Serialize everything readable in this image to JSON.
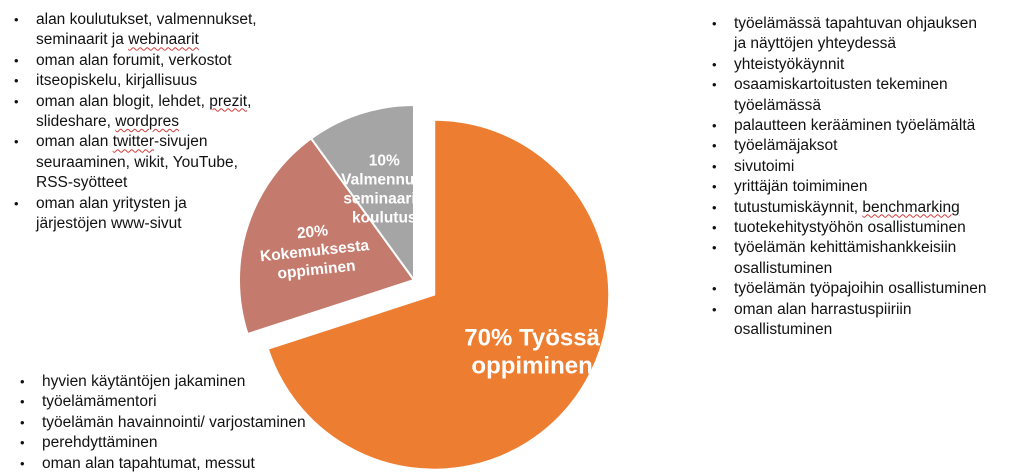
{
  "chart_data": {
    "type": "pie",
    "title": "",
    "slices": [
      {
        "name": "Työssä oppiminen",
        "value": 70,
        "label_lines": [
          "70% Työssä",
          "oppiminen"
        ],
        "color": "#ed7d31",
        "exploded": true
      },
      {
        "name": "Kokemuksesta oppiminen",
        "value": 20,
        "label_lines": [
          "20%",
          "Kokemuksesta",
          "oppiminen"
        ],
        "color": "#c47a6c",
        "exploded": false
      },
      {
        "name": "Valmennus, seminaarit, koulutus",
        "value": 10,
        "label_lines": [
          "10%",
          "Valmennus,",
          "seminaarit,",
          "koulutus"
        ],
        "color": "#a5a5a5",
        "exploded": false
      }
    ]
  },
  "lists": {
    "left": [
      {
        "lines": [
          "alan koulutukset, valmennukset,",
          "seminaarit ja webinaarit"
        ]
      },
      {
        "lines": [
          "oman alan forumit, verkostot"
        ]
      },
      {
        "lines": [
          "itseopiskelu, kirjallisuus"
        ]
      },
      {
        "lines": [
          "oman alan blogit, lehdet, prezit,",
          "slideshare, wordpres"
        ]
      },
      {
        "lines": [
          "oman alan twitter-sivujen",
          "seuraaminen, wikit, YouTube,",
          "RSS-syötteet"
        ]
      },
      {
        "lines": [
          "oman alan yritysten ja",
          "järjestöjen www-sivut"
        ]
      }
    ],
    "right": [
      {
        "lines": [
          "työelämässä tapahtuvan ohjauksen",
          "ja näyttöjen yhteydessä"
        ]
      },
      {
        "lines": [
          "yhteistyökäynnit"
        ]
      },
      {
        "lines": [
          "osaamiskartoitusten tekeminen",
          "työelämässä"
        ]
      },
      {
        "lines": [
          "palautteen kerääminen työelämältä"
        ]
      },
      {
        "lines": [
          "työelämäjaksot"
        ]
      },
      {
        "lines": [
          "sivutoimi"
        ]
      },
      {
        "lines": [
          "yrittäjän toimiminen"
        ]
      },
      {
        "lines": [
          "tutustumiskäynnit, benchmarking"
        ]
      },
      {
        "lines": [
          "tuotekehitystyöhön osallistuminen"
        ]
      },
      {
        "lines": [
          "työelämän kehittämishankkeisiin",
          "osallistuminen"
        ]
      },
      {
        "lines": [
          "työelämän työpajoihin osallistuminen"
        ]
      },
      {
        "lines": [
          "oman alan harrastuspiiriin",
          "osallistuminen"
        ]
      }
    ],
    "bottom": [
      {
        "lines": [
          "hyvien käytäntöjen jakaminen"
        ]
      },
      {
        "lines": [
          "työelämämentori"
        ]
      },
      {
        "lines": [
          "työelämän havainnointi/ varjostaminen"
        ]
      },
      {
        "lines": [
          "perehdyttäminen"
        ]
      },
      {
        "lines": [
          "oman alan tapahtumat, messut"
        ]
      }
    ]
  },
  "spellcheck_marked": [
    "webinaarit",
    "prezit",
    "wordpres",
    "twitter",
    "benchmarking"
  ]
}
